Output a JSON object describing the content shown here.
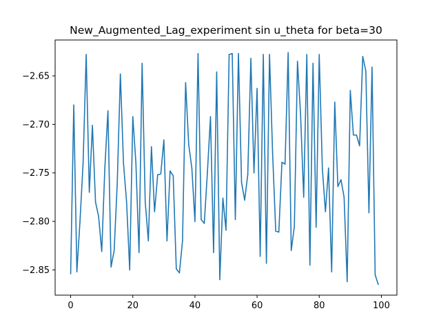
{
  "chart_data": {
    "type": "line",
    "title": "New_Augmented_Lag_experiment sin u_theta for beta=30",
    "xlabel": "",
    "ylabel": "",
    "xlim": [
      -5,
      105
    ],
    "ylim": [
      -2.876,
      -2.613
    ],
    "xticks": [
      0,
      20,
      40,
      60,
      80,
      100
    ],
    "xtick_labels": [
      "0",
      "20",
      "40",
      "60",
      "80",
      "100"
    ],
    "yticks": [
      -2.85,
      -2.8,
      -2.75,
      -2.7,
      -2.65
    ],
    "ytick_labels": [
      "−2.85",
      "−2.80",
      "−2.75",
      "−2.70",
      "−2.65"
    ],
    "grid": false,
    "colors": {
      "line": "#1f77b4"
    },
    "series": [
      {
        "x": [
          0,
          1,
          2,
          3,
          4,
          5,
          6,
          7,
          8,
          9,
          10,
          11,
          12,
          13,
          14,
          15,
          16,
          17,
          18,
          19,
          20,
          21,
          22,
          23,
          24,
          25,
          26,
          27,
          28,
          29,
          30,
          31,
          32,
          33,
          34,
          35,
          36,
          37,
          38,
          39,
          40,
          41,
          42,
          43,
          44,
          45,
          46,
          47,
          48,
          49,
          50,
          51,
          52,
          53,
          54,
          55,
          56,
          57,
          58,
          59,
          60,
          61,
          62,
          63,
          64,
          65,
          66,
          67,
          68,
          69,
          70,
          71,
          72,
          73,
          74,
          75,
          76,
          77,
          78,
          79,
          80,
          81,
          82,
          83,
          84,
          85,
          86,
          87,
          88,
          89,
          90,
          91,
          92,
          93,
          94,
          95,
          96,
          97,
          98,
          99
        ],
        "values": [
          -2.854,
          -2.68,
          -2.852,
          -2.8,
          -2.74,
          -2.628,
          -2.77,
          -2.701,
          -2.78,
          -2.795,
          -2.831,
          -2.745,
          -2.686,
          -2.847,
          -2.83,
          -2.76,
          -2.648,
          -2.74,
          -2.78,
          -2.85,
          -2.692,
          -2.74,
          -2.832,
          -2.637,
          -2.78,
          -2.82,
          -2.723,
          -2.79,
          -2.752,
          -2.751,
          -2.716,
          -2.82,
          -2.748,
          -2.753,
          -2.849,
          -2.853,
          -2.82,
          -2.657,
          -2.721,
          -2.745,
          -2.8,
          -2.627,
          -2.798,
          -2.802,
          -2.75,
          -2.692,
          -2.832,
          -2.646,
          -2.86,
          -2.776,
          -2.809,
          -2.628,
          -2.627,
          -2.798,
          -2.627,
          -2.76,
          -2.778,
          -2.752,
          -2.632,
          -2.75,
          -2.663,
          -2.836,
          -2.628,
          -2.843,
          -2.628,
          -2.73,
          -2.81,
          -2.811,
          -2.739,
          -2.741,
          -2.626,
          -2.83,
          -2.805,
          -2.635,
          -2.69,
          -2.775,
          -2.628,
          -2.845,
          -2.637,
          -2.806,
          -2.628,
          -2.745,
          -2.79,
          -2.745,
          -2.852,
          -2.677,
          -2.764,
          -2.757,
          -2.775,
          -2.862,
          -2.665,
          -2.711,
          -2.711,
          -2.722,
          -2.63,
          -2.645,
          -2.791,
          -2.641,
          -2.855,
          -2.865
        ]
      }
    ]
  }
}
